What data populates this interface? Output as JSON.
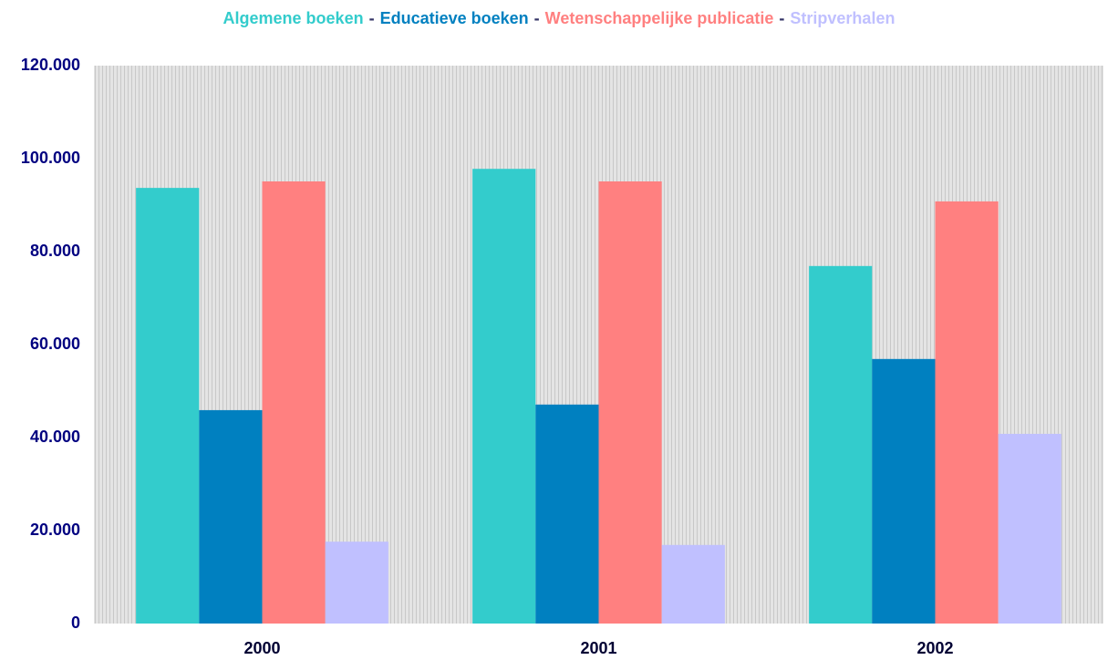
{
  "chart_data": {
    "type": "bar",
    "categories": [
      "2000",
      "2001",
      "2002"
    ],
    "series": [
      {
        "name": "Algemene boeken",
        "color": "#33cccc",
        "values": [
          93700,
          97800,
          76900
        ]
      },
      {
        "name": "Educatieve boeken",
        "color": "#0080c0",
        "values": [
          45900,
          47100,
          56900
        ]
      },
      {
        "name": "Wetenschappelijke publicatie",
        "color": "#ff8080",
        "values": [
          95100,
          95100,
          90800
        ]
      },
      {
        "name": "Stripverhalen",
        "color": "#c0c0ff",
        "values": [
          17600,
          16900,
          40800
        ]
      }
    ],
    "legend_separator": "-",
    "ylim": [
      0,
      120000
    ],
    "yticks": [
      0,
      {
        "value": 20000,
        "label": "20.000"
      },
      {
        "value": 40000,
        "label": "40.000"
      },
      {
        "value": 60000,
        "label": "60.000"
      },
      {
        "value": 80000,
        "label": "80.000"
      },
      {
        "value": 100000,
        "label": "100.000"
      },
      {
        "value": 120000,
        "label": "120.000"
      }
    ]
  }
}
